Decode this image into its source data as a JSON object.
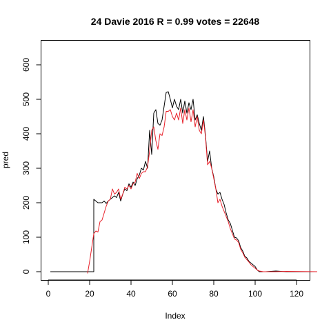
{
  "chart_data": {
    "type": "line",
    "title": "24 Davie 2016 R = 0.99 votes = 22648",
    "xlabel": "Index",
    "ylabel": "pred",
    "xlim": [
      1,
      130
    ],
    "ylim": [
      0,
      650
    ],
    "xticks": [
      0,
      20,
      40,
      60,
      80,
      100,
      120
    ],
    "yticks": [
      0,
      100,
      200,
      300,
      400,
      500,
      600
    ],
    "grid": false,
    "legend": "none",
    "series": [
      {
        "color": "#000000",
        "points": [
          [
            1,
            0
          ],
          [
            22,
            0
          ],
          [
            22,
            210
          ],
          [
            23,
            205
          ],
          [
            24,
            200
          ],
          [
            26,
            200
          ],
          [
            27,
            205
          ],
          [
            28,
            198
          ],
          [
            29,
            205
          ],
          [
            30,
            210
          ],
          [
            31,
            215
          ],
          [
            32,
            220
          ],
          [
            33,
            215
          ],
          [
            34,
            230
          ],
          [
            35,
            205
          ],
          [
            36,
            225
          ],
          [
            37,
            240
          ],
          [
            38,
            235
          ],
          [
            39,
            255
          ],
          [
            40,
            245
          ],
          [
            41,
            260
          ],
          [
            42,
            250
          ],
          [
            43,
            270
          ],
          [
            44,
            280
          ],
          [
            45,
            300
          ],
          [
            46,
            295
          ],
          [
            47,
            320
          ],
          [
            48,
            300
          ],
          [
            49,
            410
          ],
          [
            50,
            340
          ],
          [
            51,
            460
          ],
          [
            52,
            470
          ],
          [
            53,
            430
          ],
          [
            54,
            425
          ],
          [
            55,
            440
          ],
          [
            56,
            480
          ],
          [
            57,
            520
          ],
          [
            58,
            522
          ],
          [
            59,
            500
          ],
          [
            60,
            475
          ],
          [
            61,
            500
          ],
          [
            62,
            480
          ],
          [
            63,
            470
          ],
          [
            64,
            500
          ],
          [
            65,
            460
          ],
          [
            66,
            495
          ],
          [
            67,
            460
          ],
          [
            68,
            490
          ],
          [
            69,
            470
          ],
          [
            70,
            500
          ],
          [
            71,
            440
          ],
          [
            72,
            455
          ],
          [
            73,
            430
          ],
          [
            74,
            410
          ],
          [
            75,
            450
          ],
          [
            76,
            395
          ],
          [
            77,
            320
          ],
          [
            78,
            350
          ],
          [
            79,
            300
          ],
          [
            80,
            275
          ],
          [
            81,
            240
          ],
          [
            82,
            225
          ],
          [
            83,
            230
          ],
          [
            84,
            210
          ],
          [
            85,
            195
          ],
          [
            86,
            170
          ],
          [
            87,
            150
          ],
          [
            88,
            140
          ],
          [
            89,
            120
          ],
          [
            90,
            100
          ],
          [
            91,
            98
          ],
          [
            92,
            90
          ],
          [
            93,
            70
          ],
          [
            94,
            60
          ],
          [
            95,
            45
          ],
          [
            96,
            40
          ],
          [
            97,
            30
          ],
          [
            98,
            25
          ],
          [
            99,
            20
          ],
          [
            100,
            15
          ],
          [
            101,
            5
          ],
          [
            102,
            0
          ],
          [
            105,
            0
          ],
          [
            110,
            2
          ],
          [
            115,
            0
          ],
          [
            130,
            0
          ]
        ]
      },
      {
        "color": "#e8212a",
        "points": [
          [
            19,
            -5
          ],
          [
            20,
            30
          ],
          [
            21,
            70
          ],
          [
            22,
            110
          ],
          [
            23,
            118
          ],
          [
            24,
            115
          ],
          [
            25,
            145
          ],
          [
            26,
            150
          ],
          [
            27,
            170
          ],
          [
            28,
            190
          ],
          [
            29,
            205
          ],
          [
            30,
            210
          ],
          [
            31,
            240
          ],
          [
            32,
            225
          ],
          [
            33,
            230
          ],
          [
            34,
            240
          ],
          [
            35,
            210
          ],
          [
            36,
            225
          ],
          [
            37,
            245
          ],
          [
            38,
            240
          ],
          [
            39,
            250
          ],
          [
            40,
            240
          ],
          [
            41,
            255
          ],
          [
            42,
            260
          ],
          [
            43,
            285
          ],
          [
            44,
            270
          ],
          [
            45,
            285
          ],
          [
            46,
            290
          ],
          [
            47,
            290
          ],
          [
            48,
            305
          ],
          [
            49,
            350
          ],
          [
            50,
            410
          ],
          [
            51,
            420
          ],
          [
            52,
            380
          ],
          [
            53,
            355
          ],
          [
            54,
            400
          ],
          [
            55,
            395
          ],
          [
            56,
            420
          ],
          [
            57,
            465
          ],
          [
            58,
            465
          ],
          [
            59,
            470
          ],
          [
            60,
            450
          ],
          [
            61,
            440
          ],
          [
            62,
            460
          ],
          [
            63,
            440
          ],
          [
            64,
            475
          ],
          [
            65,
            430
          ],
          [
            66,
            470
          ],
          [
            67,
            440
          ],
          [
            68,
            475
          ],
          [
            69,
            435
          ],
          [
            70,
            470
          ],
          [
            71,
            420
          ],
          [
            72,
            450
          ],
          [
            73,
            410
          ],
          [
            74,
            400
          ],
          [
            75,
            440
          ],
          [
            76,
            390
          ],
          [
            77,
            310
          ],
          [
            78,
            320
          ],
          [
            79,
            300
          ],
          [
            80,
            270
          ],
          [
            81,
            240
          ],
          [
            82,
            200
          ],
          [
            83,
            210
          ],
          [
            84,
            190
          ],
          [
            85,
            175
          ],
          [
            86,
            160
          ],
          [
            87,
            145
          ],
          [
            88,
            125
          ],
          [
            89,
            110
          ],
          [
            90,
            95
          ],
          [
            91,
            92
          ],
          [
            92,
            85
          ],
          [
            93,
            65
          ],
          [
            94,
            55
          ],
          [
            95,
            42
          ],
          [
            96,
            35
          ],
          [
            97,
            28
          ],
          [
            98,
            20
          ],
          [
            99,
            15
          ],
          [
            100,
            10
          ],
          [
            101,
            5
          ],
          [
            102,
            2
          ],
          [
            104,
            0
          ],
          [
            110,
            0
          ],
          [
            115,
            1
          ],
          [
            130,
            0
          ]
        ]
      }
    ]
  }
}
